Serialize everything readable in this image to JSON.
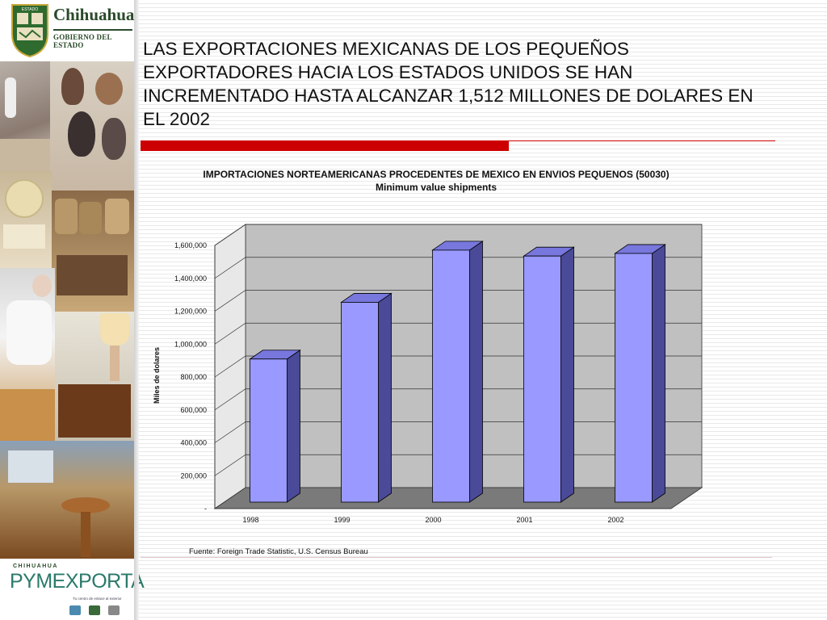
{
  "logo": {
    "name": "Chihuahua",
    "subtitle": "GOBIERNO DEL ESTADO",
    "shield_text": "ESTADO"
  },
  "bottom_logo": {
    "top": "CHIHUAHUA",
    "main": "PYMEXPORTA",
    "tagline": "Tu centro de enlace al exterior"
  },
  "title": "LAS EXPORTACIONES MEXICANAS DE LOS PEQUEÑOS EXPORTADORES HACIA LOS ESTADOS UNIDOS SE HAN INCREMENTADO HASTA ALCANZAR 1,512 MILLONES DE DOLARES   EN EL 2002",
  "source": "Fuente: Foreign Trade Statistic, U.S. Census Bureau",
  "colors": {
    "bar_front": "#9999ff",
    "bar_side": "#4a4a99",
    "bar_top": "#7777dd",
    "wall": "#c0c0c0",
    "floor": "#7a7a7a",
    "accent": "#cc0000"
  },
  "chart_data": {
    "type": "bar",
    "title": "IMPORTACIONES NORTEAMERICANAS PROCEDENTES DE MEXICO  EN ENVIOS PEQUENOS  (50030) Minimum value shipments",
    "ylabel": "Miles de dolares",
    "xlabel": "",
    "categories": [
      "1998",
      "1999",
      "2000",
      "2001",
      "2002"
    ],
    "values": [
      870000,
      1215000,
      1532000,
      1496000,
      1512000
    ],
    "ylim": [
      0,
      1600000
    ],
    "yticks": [
      0,
      200000,
      400000,
      600000,
      800000,
      1000000,
      1200000,
      1400000,
      1600000
    ],
    "ytick_labels": [
      "-",
      "200,000",
      "400,000",
      "600,000",
      "800,000",
      "1,000,000",
      "1,200,000",
      "1,400,000",
      "1,600,000"
    ],
    "grid": true,
    "style": "3d"
  }
}
